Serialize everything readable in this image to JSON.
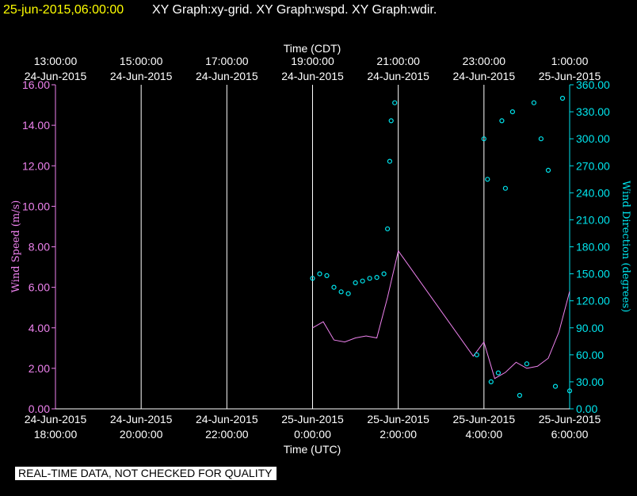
{
  "header": {
    "timestamp": "25-jun-2015,06:00:00",
    "graphs": "XY Graph:xy-grid.  XY Graph:wspd.  XY Graph:wdir."
  },
  "disclaimer": "REAL-TIME DATA, NOT CHECKED FOR QUALITY",
  "colors": {
    "background": "#000000",
    "grid": "#ffffff",
    "speed": "#ee82ee",
    "direction": "#00e5ee",
    "header_timestamp": "#ffff00"
  },
  "chart_data": {
    "type": "line",
    "top_axis": {
      "title": "Time (CDT)",
      "ticks": [
        {
          "t": 0,
          "time": "13:00:00",
          "date": "24-Jun-2015"
        },
        {
          "t": 2,
          "time": "15:00:00",
          "date": "24-Jun-2015"
        },
        {
          "t": 4,
          "time": "17:00:00",
          "date": "24-Jun-2015"
        },
        {
          "t": 6,
          "time": "19:00:00",
          "date": "24-Jun-2015"
        },
        {
          "t": 8,
          "time": "21:00:00",
          "date": "24-Jun-2015"
        },
        {
          "t": 10,
          "time": "23:00:00",
          "date": "24-Jun-2015"
        },
        {
          "t": 12,
          "time": "1:00:00",
          "date": "25-Jun-2015"
        }
      ]
    },
    "bottom_axis": {
      "title": "Time (UTC)",
      "ticks": [
        {
          "t": 0,
          "date": "24-Jun-2015",
          "time": "18:00:00"
        },
        {
          "t": 2,
          "date": "24-Jun-2015",
          "time": "20:00:00"
        },
        {
          "t": 4,
          "date": "24-Jun-2015",
          "time": "22:00:00"
        },
        {
          "t": 6,
          "date": "25-Jun-2015",
          "time": "0:00:00"
        },
        {
          "t": 8,
          "date": "25-Jun-2015",
          "time": "2:00:00"
        },
        {
          "t": 10,
          "date": "25-Jun-2015",
          "time": "4:00:00"
        },
        {
          "t": 12,
          "date": "25-Jun-2015",
          "time": "6:00:00"
        }
      ]
    },
    "x_range": [
      "2015-06-24 18:00 UTC",
      "2015-06-25 06:00 UTC"
    ],
    "left_axis": {
      "label": "Wind Speed (m/s)",
      "range": [
        0,
        16
      ],
      "ticks": [
        "0.00",
        "2.00",
        "4.00",
        "6.00",
        "8.00",
        "10.00",
        "12.00",
        "14.00",
        "16.00"
      ]
    },
    "right_axis": {
      "label": "Wind Direction (degrees)",
      "range": [
        0,
        360
      ],
      "ticks": [
        "0.00",
        "30.00",
        "60.00",
        "90.00",
        "120.00",
        "150.00",
        "180.00",
        "210.00",
        "240.00",
        "270.00",
        "300.00",
        "330.00",
        "360.00"
      ]
    },
    "grid": "vertical lines at each time tick",
    "series": [
      {
        "name": "Wind Speed",
        "axis": "left",
        "style": "line",
        "color": "#ee82ee",
        "points": [
          [
            "2015-06-25 00:00 UTC",
            4.0
          ],
          [
            "2015-06-25 00:15 UTC",
            4.3
          ],
          [
            "2015-06-25 00:30 UTC",
            3.4
          ],
          [
            "2015-06-25 00:45 UTC",
            3.3
          ],
          [
            "2015-06-25 01:00 UTC",
            3.5
          ],
          [
            "2015-06-25 01:15 UTC",
            3.6
          ],
          [
            "2015-06-25 01:30 UTC",
            3.5
          ],
          [
            "2015-06-25 01:45 UTC",
            5.5
          ],
          [
            "2015-06-25 02:00 UTC",
            7.8
          ],
          [
            "2015-06-25 03:45 UTC",
            2.6
          ],
          [
            "2015-06-25 04:00 UTC",
            3.3
          ],
          [
            "2015-06-25 04:15 UTC",
            1.5
          ],
          [
            "2015-06-25 04:30 UTC",
            1.8
          ],
          [
            "2015-06-25 04:45 UTC",
            2.3
          ],
          [
            "2015-06-25 05:00 UTC",
            2.0
          ],
          [
            "2015-06-25 05:15 UTC",
            2.1
          ],
          [
            "2015-06-25 05:30 UTC",
            2.5
          ],
          [
            "2015-06-25 05:45 UTC",
            3.8
          ],
          [
            "2015-06-25 06:00 UTC",
            5.8
          ]
        ]
      },
      {
        "name": "Wind Direction",
        "axis": "right",
        "style": "markers",
        "color": "#00e5ee",
        "points": [
          [
            "2015-06-25 00:00 UTC",
            145
          ],
          [
            "2015-06-25 00:10 UTC",
            150
          ],
          [
            "2015-06-25 00:20 UTC",
            148
          ],
          [
            "2015-06-25 00:30 UTC",
            135
          ],
          [
            "2015-06-25 00:40 UTC",
            130
          ],
          [
            "2015-06-25 00:50 UTC",
            128
          ],
          [
            "2015-06-25 01:00 UTC",
            140
          ],
          [
            "2015-06-25 01:10 UTC",
            142
          ],
          [
            "2015-06-25 01:20 UTC",
            145
          ],
          [
            "2015-06-25 01:30 UTC",
            146
          ],
          [
            "2015-06-25 01:40 UTC",
            150
          ],
          [
            "2015-06-25 01:45 UTC",
            200
          ],
          [
            "2015-06-25 01:48 UTC",
            275
          ],
          [
            "2015-06-25 01:50 UTC",
            320
          ],
          [
            "2015-06-25 01:55 UTC",
            340
          ],
          [
            "2015-06-25 03:50 UTC",
            60
          ],
          [
            "2015-06-25 04:00 UTC",
            300
          ],
          [
            "2015-06-25 04:05 UTC",
            255
          ],
          [
            "2015-06-25 04:10 UTC",
            30
          ],
          [
            "2015-06-25 04:20 UTC",
            40
          ],
          [
            "2015-06-25 04:25 UTC",
            320
          ],
          [
            "2015-06-25 04:30 UTC",
            245
          ],
          [
            "2015-06-25 04:40 UTC",
            330
          ],
          [
            "2015-06-25 04:50 UTC",
            15
          ],
          [
            "2015-06-25 05:00 UTC",
            50
          ],
          [
            "2015-06-25 05:10 UTC",
            340
          ],
          [
            "2015-06-25 05:20 UTC",
            300
          ],
          [
            "2015-06-25 05:30 UTC",
            265
          ],
          [
            "2015-06-25 05:40 UTC",
            25
          ],
          [
            "2015-06-25 05:50 UTC",
            345
          ],
          [
            "2015-06-25 06:00 UTC",
            20
          ]
        ]
      }
    ]
  }
}
